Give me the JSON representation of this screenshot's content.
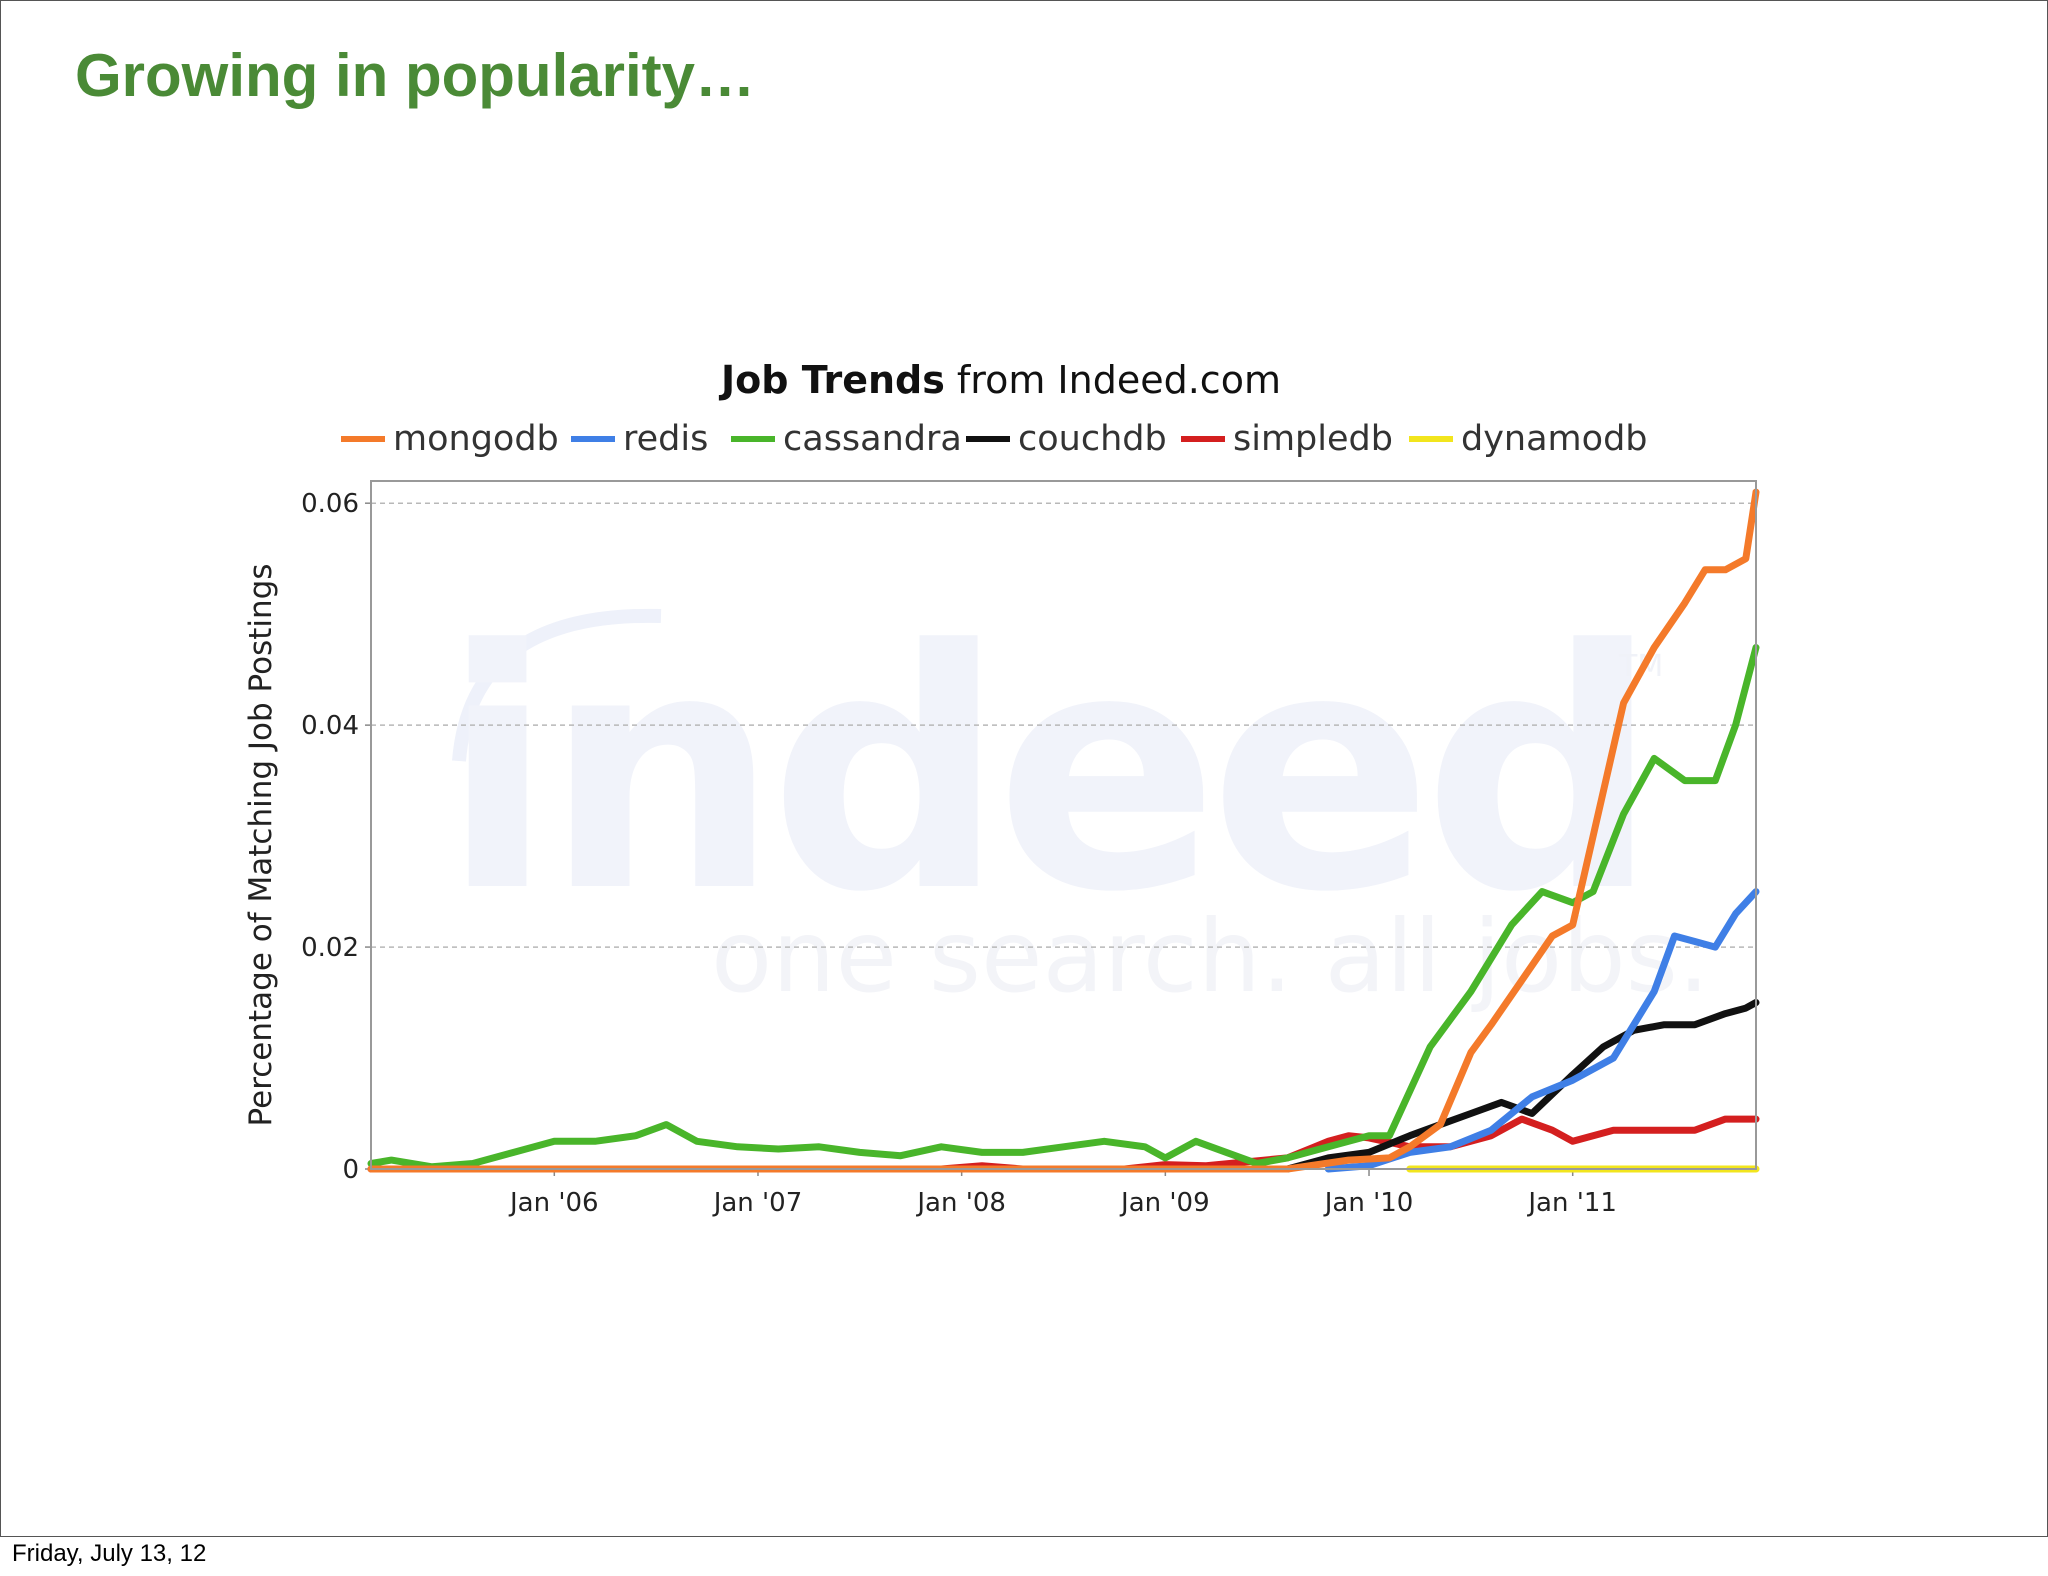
{
  "slide": {
    "title": "Growing in popularity…",
    "footer_date": "Friday, July 13, 12"
  },
  "chart_data": {
    "type": "line",
    "title_bold": "Job Trends",
    "title_rest": " from Indeed.com",
    "ylabel": "Percentage of Matching Job Postings",
    "xlabel": "",
    "xlim": [
      2005.1,
      2011.9
    ],
    "ylim": [
      0,
      0.062
    ],
    "x_ticks": [
      2006,
      2007,
      2008,
      2009,
      2010,
      2011
    ],
    "x_tick_labels": [
      "Jan '06",
      "Jan '07",
      "Jan '08",
      "Jan '09",
      "Jan '10",
      "Jan '11"
    ],
    "y_ticks": [
      0,
      0.02,
      0.04,
      0.06
    ],
    "y_tick_labels": [
      "0",
      "0.02",
      "0.04",
      "0.06"
    ],
    "grid": true,
    "legend_position": "top",
    "watermark": {
      "logo": "indeed",
      "tagline": "one search. all jobs.",
      "trademark": "TM"
    },
    "series": [
      {
        "name": "mongodb",
        "color": "#f47a2a",
        "x": [
          2005.1,
          2009.6,
          2009.9,
          2010.1,
          2010.2,
          2010.35,
          2010.5,
          2010.6,
          2010.75,
          2010.9,
          2011.0,
          2011.1,
          2011.25,
          2011.4,
          2011.55,
          2011.65,
          2011.75,
          2011.85,
          2011.9
        ],
        "y": [
          0,
          0,
          0.0008,
          0.001,
          0.002,
          0.004,
          0.0105,
          0.013,
          0.017,
          0.021,
          0.022,
          0.03,
          0.042,
          0.047,
          0.051,
          0.054,
          0.054,
          0.055,
          0.061
        ]
      },
      {
        "name": "redis",
        "color": "#3f7fe6",
        "x": [
          2009.8,
          2010.0,
          2010.2,
          2010.4,
          2010.6,
          2010.8,
          2011.0,
          2011.2,
          2011.4,
          2011.5,
          2011.6,
          2011.7,
          2011.8,
          2011.9
        ],
        "y": [
          0,
          0.0003,
          0.0015,
          0.002,
          0.0035,
          0.0065,
          0.008,
          0.01,
          0.016,
          0.021,
          0.0205,
          0.02,
          0.023,
          0.025
        ]
      },
      {
        "name": "cassandra",
        "color": "#49b52a",
        "x": [
          2005.1,
          2005.2,
          2005.4,
          2005.6,
          2005.8,
          2006.0,
          2006.2,
          2006.4,
          2006.55,
          2006.7,
          2006.9,
          2007.1,
          2007.3,
          2007.5,
          2007.7,
          2007.9,
          2008.1,
          2008.3,
          2008.5,
          2008.7,
          2008.9,
          2009.0,
          2009.15,
          2009.3,
          2009.45,
          2009.6,
          2009.8,
          2010.0,
          2010.1,
          2010.3,
          2010.5,
          2010.7,
          2010.85,
          2011.0,
          2011.1,
          2011.25,
          2011.4,
          2011.55,
          2011.7,
          2011.8,
          2011.9
        ],
        "y": [
          0.0005,
          0.0008,
          0.0002,
          0.0005,
          0.0015,
          0.0025,
          0.0025,
          0.003,
          0.004,
          0.0025,
          0.002,
          0.0018,
          0.002,
          0.0015,
          0.0012,
          0.002,
          0.0015,
          0.0015,
          0.002,
          0.0025,
          0.002,
          0.001,
          0.0025,
          0.0015,
          0.0005,
          0.001,
          0.002,
          0.003,
          0.003,
          0.011,
          0.016,
          0.022,
          0.025,
          0.024,
          0.025,
          0.032,
          0.037,
          0.035,
          0.035,
          0.04,
          0.047
        ]
      },
      {
        "name": "couchdb",
        "color": "#111111",
        "x": [
          2009.6,
          2009.8,
          2010.0,
          2010.2,
          2010.35,
          2010.5,
          2010.65,
          2010.8,
          2011.0,
          2011.15,
          2011.3,
          2011.45,
          2011.6,
          2011.75,
          2011.85,
          2011.9
        ],
        "y": [
          0,
          0.001,
          0.0015,
          0.003,
          0.004,
          0.005,
          0.006,
          0.005,
          0.0085,
          0.011,
          0.0125,
          0.013,
          0.013,
          0.014,
          0.0145,
          0.015
        ]
      },
      {
        "name": "simpledb",
        "color": "#d41f1f",
        "x": [
          2005.1,
          2007.9,
          2008.1,
          2008.3,
          2008.8,
          2009.0,
          2009.2,
          2009.6,
          2009.8,
          2009.9,
          2010.0,
          2010.2,
          2010.4,
          2010.6,
          2010.75,
          2010.9,
          2011.0,
          2011.2,
          2011.4,
          2011.6,
          2011.75,
          2011.9
        ],
        "y": [
          0,
          0,
          0.0003,
          0,
          0,
          0.0004,
          0.0003,
          0.001,
          0.0025,
          0.003,
          0.0028,
          0.002,
          0.002,
          0.003,
          0.0045,
          0.0035,
          0.0025,
          0.0035,
          0.0035,
          0.0035,
          0.0045,
          0.0045
        ]
      },
      {
        "name": "dynamodb",
        "color": "#f2e51d",
        "x": [
          2010.2,
          2011.9
        ],
        "y": [
          0,
          0
        ]
      }
    ]
  }
}
